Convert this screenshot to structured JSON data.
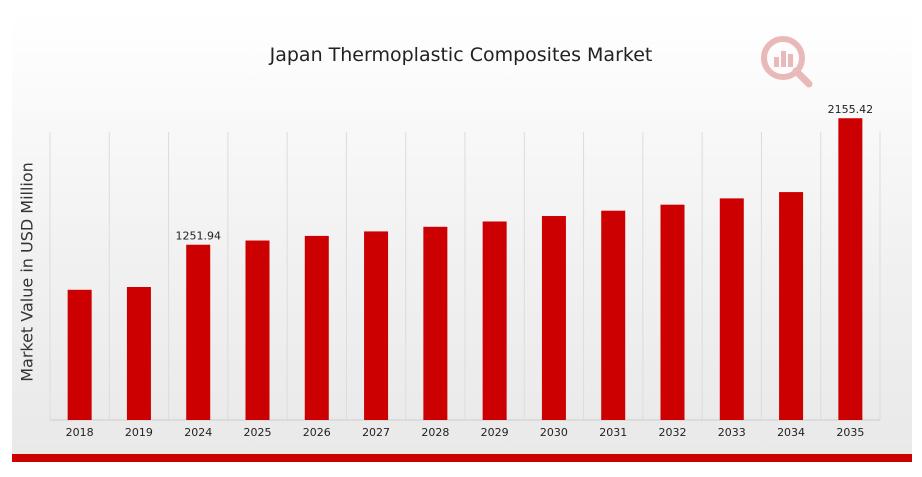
{
  "colors": {
    "bar": "#cc0000",
    "accent": "#cc0000",
    "grid": "#dcdcdc",
    "axis": "#cccccc"
  },
  "logo": {
    "icon": "research-chart-logo-icon"
  },
  "chart_data": {
    "type": "bar",
    "title": "Japan Thermoplastic Composites Market",
    "xlabel": "",
    "ylabel": "Market Value in USD Million",
    "categories": [
      "2018",
      "2019",
      "2024",
      "2025",
      "2026",
      "2027",
      "2028",
      "2029",
      "2030",
      "2031",
      "2032",
      "2033",
      "2034",
      "2035"
    ],
    "values": [
      930,
      950,
      1251.94,
      1282,
      1315,
      1347,
      1380,
      1418,
      1457,
      1495,
      1538,
      1583,
      1628,
      2155.42
    ],
    "data_labels": {
      "2024": "1251.94",
      "2035": "2155.42"
    },
    "ylim": [
      0,
      2200
    ],
    "grid": "vertical",
    "legend": "none"
  }
}
